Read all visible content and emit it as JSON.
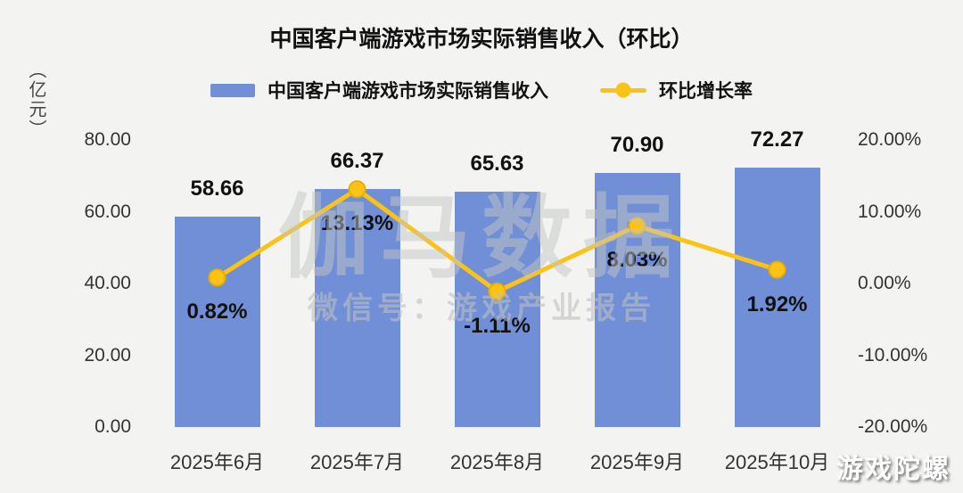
{
  "page": {
    "background": "#f3f4f2"
  },
  "watermark": {
    "main": "伽马数据",
    "sub": "微信号：游戏产业报告",
    "corner": "游戏陀螺"
  },
  "chart_data": {
    "type": "bar+line",
    "title": "中国客户端游戏市场实际销售收入（环比）",
    "unit_label": "（亿元）",
    "categories": [
      "2025年6月",
      "2025年7月",
      "2025年8月",
      "2025年9月",
      "2025年10月"
    ],
    "series": [
      {
        "name": "中国客户端游戏市场实际销售收入",
        "type": "bar",
        "axis": "left",
        "color": "#708fd6",
        "values": [
          58.66,
          66.37,
          65.63,
          70.9,
          72.27
        ],
        "labels": [
          "58.66",
          "66.37",
          "65.63",
          "70.90",
          "72.27"
        ]
      },
      {
        "name": "环比增长率",
        "type": "line",
        "axis": "right",
        "color": "#fbc316",
        "marker_stroke": "#e9ad05",
        "values": [
          0.82,
          13.13,
          -1.11,
          8.03,
          1.92
        ],
        "labels": [
          "0.82%",
          "13.13%",
          "-1.11%",
          "8.03%",
          "1.92%"
        ]
      }
    ],
    "left_axis": {
      "min": 0,
      "max": 80,
      "ticks": [
        "80.00",
        "60.00",
        "40.00",
        "20.00",
        "0.00"
      ]
    },
    "right_axis": {
      "min": -20,
      "max": 20,
      "ticks": [
        "20.00%",
        "10.00%",
        "0.00%",
        "-10.00%",
        "-20.00%"
      ]
    },
    "legend_position": "top",
    "grid": false
  }
}
